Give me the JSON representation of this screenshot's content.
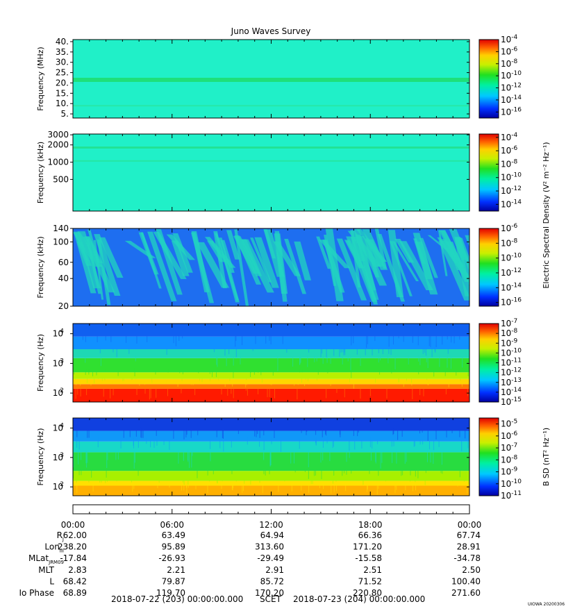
{
  "title": "Juno Waves Survey",
  "footer_stamp": "UIOWA 20200306",
  "chart_data": [
    {
      "type": "heatmap",
      "panel": "hfr-high",
      "ylabel": "Frequency (MHz)",
      "scale": "linear",
      "ylim": [
        3,
        41
      ],
      "yticks": [
        {
          "value": 5,
          "label": "5."
        },
        {
          "value": 10,
          "label": "10."
        },
        {
          "value": 15,
          "label": "15."
        },
        {
          "value": 20,
          "label": "20."
        },
        {
          "value": 25,
          "label": "25."
        },
        {
          "value": 30,
          "label": "30."
        },
        {
          "value": 35,
          "label": "35."
        },
        {
          "value": 40,
          "label": "40."
        }
      ],
      "colorbar": {
        "range_exp": [
          -17,
          -4
        ],
        "ticks": [
          -4,
          -6,
          -8,
          -10,
          -12,
          -14,
          -16
        ],
        "label": ""
      },
      "bands": [
        {
          "value": 21.5,
          "width": 2.0,
          "color": "#1ee07a"
        },
        {
          "value": 9.0,
          "width": 0.6,
          "color": "#27e8a8"
        }
      ],
      "base_color": "#20f0c8"
    },
    {
      "type": "heatmap",
      "panel": "hfr-low",
      "ylabel": "Frequency (kHz)",
      "scale": "log",
      "ylim": [
        140,
        3100
      ],
      "yticks": [
        {
          "value": 500,
          "label": "500"
        },
        {
          "value": 1000,
          "label": "1000"
        },
        {
          "value": 2000,
          "label": "2000"
        },
        {
          "value": 3000,
          "label": "3000"
        }
      ],
      "colorbar": {
        "range_exp": [
          -15,
          -3.5
        ],
        "ticks": [
          -4,
          -6,
          -8,
          -10,
          -12,
          -14
        ],
        "label": "Electric Spectral Density (V² m⁻² Hz⁻¹)"
      },
      "bands": [
        {
          "value": 1800,
          "width": 150,
          "color": "#22e294"
        },
        {
          "value": 1050,
          "width": 60,
          "color": "#25e6a4"
        }
      ],
      "base_color": "#20f0c8"
    },
    {
      "type": "heatmap",
      "panel": "lfr-high",
      "ylabel": "Frequency (kHz)",
      "scale": "log",
      "ylim": [
        20,
        140
      ],
      "yticks": [
        {
          "value": 20,
          "label": "20"
        },
        {
          "value": 40,
          "label": "40"
        },
        {
          "value": 60,
          "label": "60"
        },
        {
          "value": 100,
          "label": "100"
        },
        {
          "value": 140,
          "label": "140"
        }
      ],
      "colorbar": {
        "range_exp": [
          -16.5,
          -6
        ],
        "ticks": [
          -6,
          -8,
          -10,
          -12,
          -14,
          -16
        ],
        "label": ""
      },
      "base_color": "#1e6ef0",
      "emission_color": "#22d6c0"
    },
    {
      "type": "heatmap",
      "panel": "lfr-low-e",
      "ylabel": "Frequency (Hz)",
      "scale": "log",
      "ylim": [
        50,
        22000
      ],
      "yticks": [
        {
          "value": 100,
          "label": "10",
          "exp": "2"
        },
        {
          "value": 1000,
          "label": "10",
          "exp": "3"
        },
        {
          "value": 10000,
          "label": "10",
          "exp": "4"
        }
      ],
      "colorbar": {
        "range_exp": [
          -15,
          -7
        ],
        "ticks": [
          -7,
          -8,
          -9,
          -10,
          -11,
          -12,
          -13,
          -14,
          -15
        ],
        "label": ""
      },
      "layers": [
        {
          "from": 50,
          "to": 140,
          "color": "#ff1a00"
        },
        {
          "from": 140,
          "to": 200,
          "color": "#ff7a00"
        },
        {
          "from": 200,
          "to": 300,
          "color": "#ffd500"
        },
        {
          "from": 300,
          "to": 500,
          "color": "#b8f000"
        },
        {
          "from": 500,
          "to": 1500,
          "color": "#30e030"
        },
        {
          "from": 1500,
          "to": 3000,
          "color": "#1ed8b4"
        },
        {
          "from": 3000,
          "to": 8000,
          "color": "#1090ff"
        },
        {
          "from": 8000,
          "to": 22000,
          "color": "#1060f0"
        }
      ]
    },
    {
      "type": "heatmap",
      "panel": "lfr-low-b",
      "ylabel": "Frequency (Hz)",
      "scale": "log",
      "ylim": [
        50,
        22000
      ],
      "yticks": [
        {
          "value": 100,
          "label": "10",
          "exp": "2"
        },
        {
          "value": 1000,
          "label": "10",
          "exp": "3"
        },
        {
          "value": 10000,
          "label": "10",
          "exp": "4"
        }
      ],
      "colorbar": {
        "range_exp": [
          -11,
          -4.5
        ],
        "ticks": [
          -5,
          -6,
          -7,
          -8,
          -9,
          -10,
          -11
        ],
        "label": "B SD (nT² Hz⁻¹)"
      },
      "layers": [
        {
          "from": 50,
          "to": 110,
          "color": "#ffb000"
        },
        {
          "from": 110,
          "to": 160,
          "color": "#ffe000"
        },
        {
          "from": 160,
          "to": 350,
          "color": "#a8f000"
        },
        {
          "from": 350,
          "to": 1500,
          "color": "#28dc40"
        },
        {
          "from": 1500,
          "to": 3500,
          "color": "#18d8c8"
        },
        {
          "from": 3500,
          "to": 8000,
          "color": "#1098f8"
        },
        {
          "from": 8000,
          "to": 22000,
          "color": "#1040e0"
        }
      ]
    }
  ],
  "time_axis": {
    "ticks": [
      "00:00",
      "06:00",
      "12:00",
      "18:00",
      "00:00"
    ]
  },
  "ephemeris": [
    {
      "label": "R",
      "sub": "J",
      "values": [
        "62.00",
        "63.49",
        "64.94",
        "66.36",
        "67.74"
      ]
    },
    {
      "label": "Lon",
      "sub": "III",
      "values": [
        "238.20",
        "95.89",
        "313.60",
        "171.20",
        "28.91"
      ]
    },
    {
      "label": "MLat",
      "sub": "JRM09",
      "values": [
        "-17.84",
        "-26.93",
        "-29.49",
        "-15.58",
        "-34.78"
      ]
    },
    {
      "label": "MLT",
      "sub": "",
      "values": [
        "2.83",
        "2.21",
        "2.91",
        "2.51",
        "2.50"
      ]
    },
    {
      "label": "L",
      "sub": "",
      "values": [
        "68.42",
        "79.87",
        "85.72",
        "71.52",
        "100.40"
      ]
    },
    {
      "label": "Io Phase",
      "sub": "",
      "values": [
        "68.89",
        "119.70",
        "170.20",
        "220.80",
        "271.60"
      ]
    }
  ],
  "footer": {
    "start": "2018-07-22 (203) 00:00:00.000",
    "scet": "SCET",
    "end": "2018-07-23 (204) 00:00:00.000"
  }
}
